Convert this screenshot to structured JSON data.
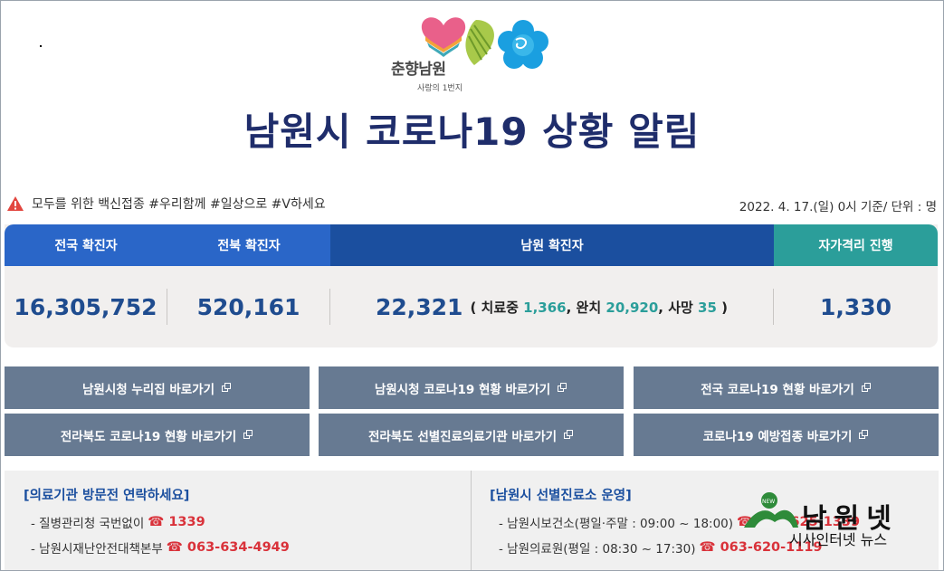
{
  "header": {
    "logo_text": "춘향남원",
    "logo_subtitle": "사랑의 1번지",
    "title": "남원시 코로나19 상황 알림"
  },
  "notice": {
    "icon": "warning-icon",
    "text": "모두를 위한 백신접종 #우리함께 #일상으로 #V하세요",
    "date_text": "2022. 4. 17.(일) 0시 기준/ 단위 : 명"
  },
  "stats": {
    "headers": [
      "전국 확진자",
      "전북 확진자",
      "남원 확진자",
      "자가격리 진행"
    ],
    "national": "16,305,752",
    "jeonbuk": "520,161",
    "namwon": "22,321",
    "namwon_detail": {
      "open": "( 치료중",
      "treating": "1,366",
      "sep1": ", 완치",
      "recovered": "20,920",
      "sep2": ", 사망",
      "deaths": "35",
      "close": ")"
    },
    "quarantine": "1,330",
    "colors": {
      "header_blue": "#2a66c8",
      "header_dark": "#1b4f9f",
      "header_teal": "#2b9e9a",
      "value": "#1f4c8f"
    }
  },
  "links": [
    "남원시청 누리집 바로가기",
    "남원시청 코로나19 현황 바로가기",
    "전국 코로나19 현황 바로가기",
    "전라북도 코로나19 현황 바로가기",
    "전라북도 선별진료의료기관 바로가기",
    "코로나19 예방접종 바로가기"
  ],
  "contact": {
    "left_title": "[의료기관 방문전 연락하세요]",
    "left_items": [
      {
        "label": "- 질병관리청 국번없이",
        "phone": "☎ 1339"
      },
      {
        "label": "- 남원시재난안전대책본부",
        "phone": "☎ 063-634-4949"
      }
    ],
    "right_title": "[남원시 선별진료소 운영]",
    "right_items": [
      {
        "label": "- 남원시보건소(평일·주말 : 09:00 ~ 18:00)",
        "phone": "☎ 063-625-1339"
      },
      {
        "label": "- 남원의료원(평일 : 08:30 ~ 17:30)",
        "phone": "☎ 063-620-1119"
      }
    ]
  },
  "watermark": {
    "badge": "NEW",
    "title": "남원넷",
    "subtitle": "시사인터넷 뉴스"
  }
}
